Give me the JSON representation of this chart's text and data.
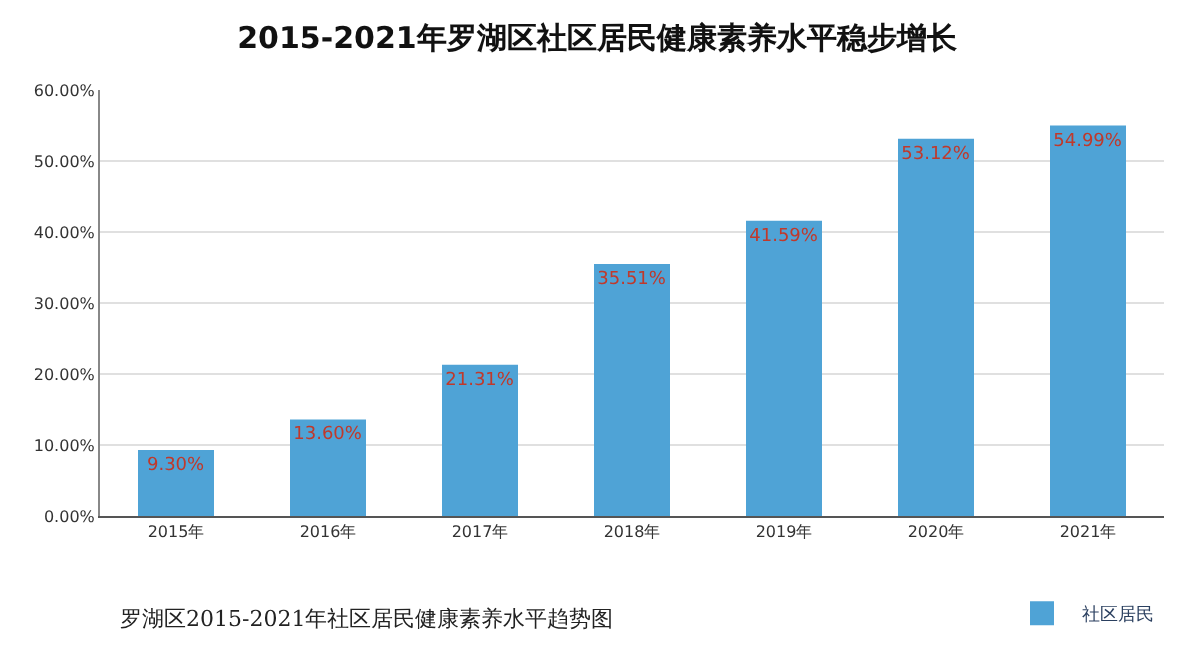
{
  "chart_data": {
    "type": "bar",
    "title": "2015-2021年罗湖区社区居民健康素养水平稳步增长",
    "categories": [
      "2015年",
      "2016年",
      "2017年",
      "2018年",
      "2019年",
      "2020年",
      "2021年"
    ],
    "series": [
      {
        "name": "社区居民",
        "color": "#4fa3d6",
        "values": [
          9.3,
          13.6,
          21.31,
          35.51,
          41.59,
          53.12,
          54.99
        ],
        "value_labels": [
          "9.30%",
          "13.60%",
          "21.31%",
          "35.51%",
          "41.59%",
          "53.12%",
          "54.99%"
        ]
      }
    ],
    "ylim": [
      0,
      60
    ],
    "yticks": [
      {
        "value": 0,
        "label": "0.00%"
      },
      {
        "value": 10,
        "label": "10.00%"
      },
      {
        "value": 20,
        "label": "20.00%"
      },
      {
        "value": 30,
        "label": "30.00%"
      },
      {
        "value": 40,
        "label": "40.00%"
      },
      {
        "value": 50,
        "label": "50.00%"
      },
      {
        "value": 60,
        "label": "60.00%"
      }
    ],
    "grid": "y",
    "legend": "bottom right",
    "annotations": [
      "罗湖区2015-2021年社区居民健康素养水平趋势图"
    ]
  }
}
